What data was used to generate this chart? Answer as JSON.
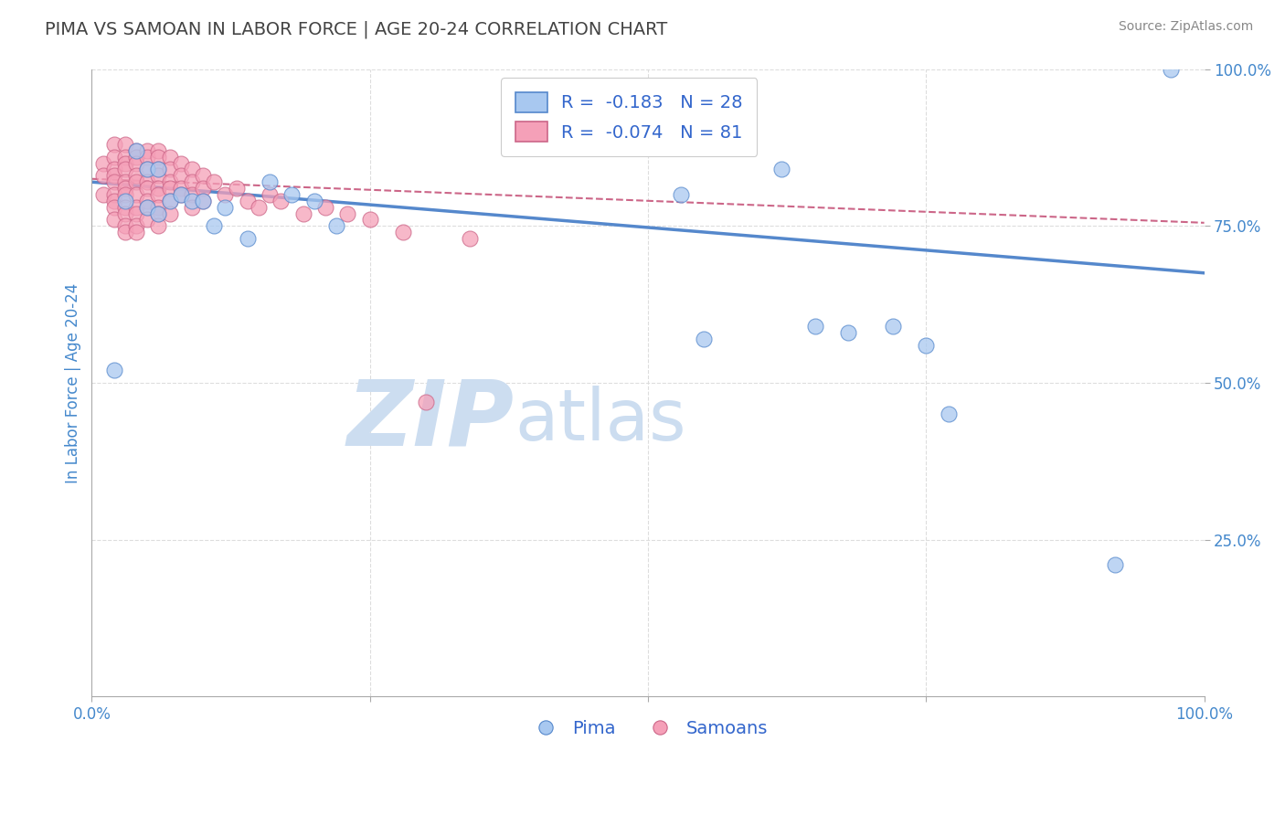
{
  "title": "PIMA VS SAMOAN IN LABOR FORCE | AGE 20-24 CORRELATION CHART",
  "source_text": "Source: ZipAtlas.com",
  "ylabel": "In Labor Force | Age 20-24",
  "xlabel": "",
  "xlim": [
    0.0,
    1.0
  ],
  "ylim": [
    0.0,
    1.0
  ],
  "pima_color": "#a8c8f0",
  "pima_edge_color": "#5588cc",
  "samoan_color": "#f5a0b8",
  "samoan_edge_color": "#cc6688",
  "pima_R": -0.183,
  "pima_N": 28,
  "samoan_R": -0.074,
  "samoan_N": 81,
  "legend_text_color": "#3366cc",
  "title_color": "#444444",
  "axis_color": "#4488cc",
  "grid_color": "#dddddd",
  "watermark_zip": "ZIP",
  "watermark_atlas": "atlas",
  "watermark_color": "#ccddf0",
  "pima_trend_y_start": 0.82,
  "pima_trend_y_end": 0.675,
  "samoan_trend_y_start": 0.825,
  "samoan_trend_y_end": 0.755,
  "pima_x": [
    0.02,
    0.03,
    0.04,
    0.05,
    0.05,
    0.06,
    0.06,
    0.07,
    0.08,
    0.09,
    0.1,
    0.11,
    0.12,
    0.14,
    0.16,
    0.18,
    0.2,
    0.22,
    0.53,
    0.55,
    0.62,
    0.65,
    0.68,
    0.72,
    0.75,
    0.77,
    0.92,
    0.97
  ],
  "pima_y": [
    0.52,
    0.79,
    0.87,
    0.84,
    0.78,
    0.84,
    0.77,
    0.79,
    0.8,
    0.79,
    0.79,
    0.75,
    0.78,
    0.73,
    0.82,
    0.8,
    0.79,
    0.75,
    0.8,
    0.57,
    0.84,
    0.59,
    0.58,
    0.59,
    0.56,
    0.45,
    0.21,
    1.0
  ],
  "samoan_x": [
    0.01,
    0.01,
    0.01,
    0.02,
    0.02,
    0.02,
    0.02,
    0.02,
    0.02,
    0.02,
    0.02,
    0.02,
    0.03,
    0.03,
    0.03,
    0.03,
    0.03,
    0.03,
    0.03,
    0.03,
    0.03,
    0.03,
    0.03,
    0.04,
    0.04,
    0.04,
    0.04,
    0.04,
    0.04,
    0.04,
    0.04,
    0.04,
    0.04,
    0.05,
    0.05,
    0.05,
    0.05,
    0.05,
    0.05,
    0.05,
    0.05,
    0.06,
    0.06,
    0.06,
    0.06,
    0.06,
    0.06,
    0.06,
    0.06,
    0.06,
    0.07,
    0.07,
    0.07,
    0.07,
    0.07,
    0.07,
    0.08,
    0.08,
    0.08,
    0.08,
    0.09,
    0.09,
    0.09,
    0.09,
    0.1,
    0.1,
    0.1,
    0.11,
    0.12,
    0.13,
    0.14,
    0.15,
    0.16,
    0.17,
    0.19,
    0.21,
    0.23,
    0.25,
    0.28,
    0.3,
    0.34
  ],
  "samoan_y": [
    0.85,
    0.83,
    0.8,
    0.88,
    0.86,
    0.84,
    0.83,
    0.82,
    0.8,
    0.79,
    0.78,
    0.76,
    0.88,
    0.86,
    0.85,
    0.84,
    0.82,
    0.81,
    0.8,
    0.78,
    0.77,
    0.75,
    0.74,
    0.87,
    0.86,
    0.85,
    0.83,
    0.82,
    0.8,
    0.78,
    0.77,
    0.75,
    0.74,
    0.87,
    0.86,
    0.84,
    0.82,
    0.81,
    0.79,
    0.78,
    0.76,
    0.87,
    0.86,
    0.84,
    0.83,
    0.81,
    0.8,
    0.78,
    0.77,
    0.75,
    0.86,
    0.84,
    0.82,
    0.81,
    0.79,
    0.77,
    0.85,
    0.83,
    0.81,
    0.8,
    0.84,
    0.82,
    0.8,
    0.78,
    0.83,
    0.81,
    0.79,
    0.82,
    0.8,
    0.81,
    0.79,
    0.78,
    0.8,
    0.79,
    0.77,
    0.78,
    0.77,
    0.76,
    0.74,
    0.47,
    0.73
  ]
}
